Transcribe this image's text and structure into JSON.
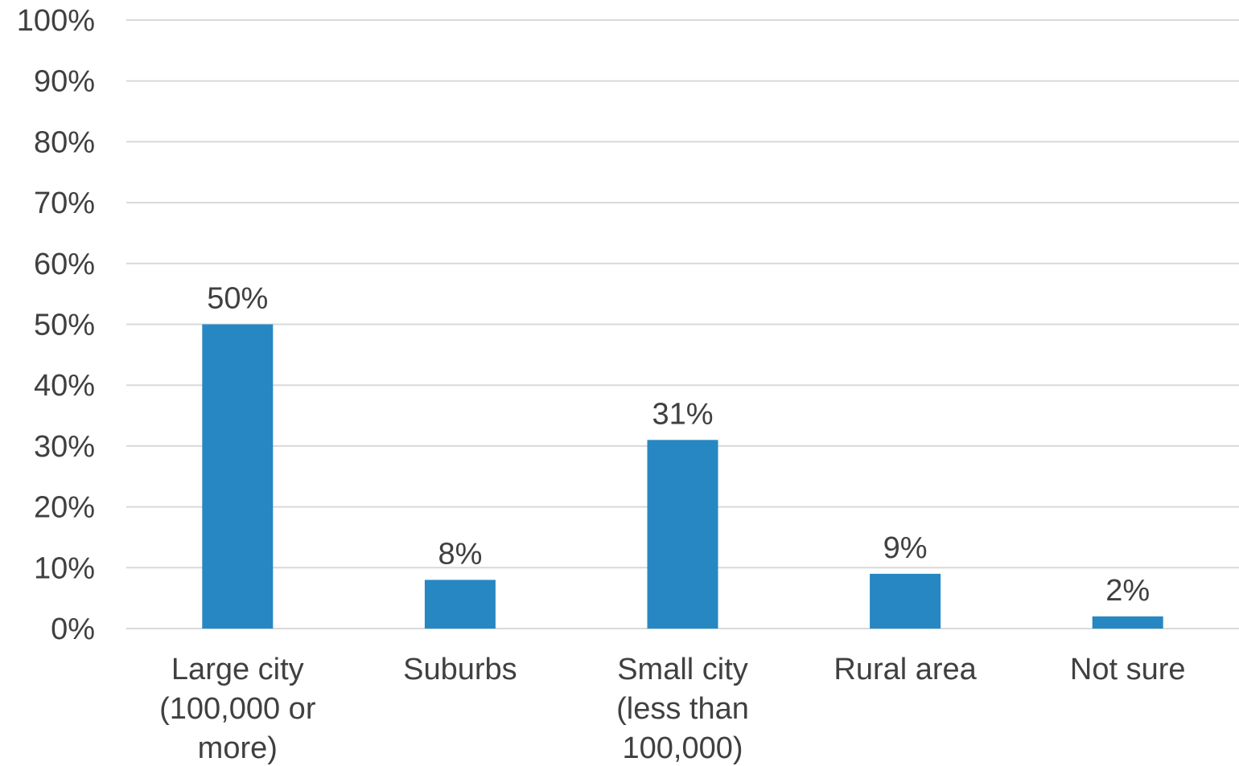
{
  "chart_data": {
    "type": "bar",
    "title": "",
    "xlabel": "",
    "ylabel": "",
    "categories": [
      [
        "Large city",
        "(100,000 or",
        "more)"
      ],
      [
        "Suburbs"
      ],
      [
        "Small city",
        "(less than",
        "100,000)"
      ],
      [
        "Rural area"
      ],
      [
        "Not sure"
      ]
    ],
    "values": [
      50,
      8,
      31,
      9,
      2
    ],
    "data_labels": [
      "50%",
      "8%",
      "31%",
      "9%",
      "2%"
    ],
    "ylim": [
      0,
      100
    ],
    "yticks": [
      0,
      10,
      20,
      30,
      40,
      50,
      60,
      70,
      80,
      90,
      100
    ],
    "ytick_labels": [
      "0%",
      "10%",
      "20%",
      "30%",
      "40%",
      "50%",
      "60%",
      "70%",
      "80%",
      "90%",
      "100%"
    ],
    "grid": true,
    "legend": "none",
    "colors": {
      "bar": "#2787c2",
      "grid": "#d9d9d9",
      "text": "#404040"
    }
  }
}
